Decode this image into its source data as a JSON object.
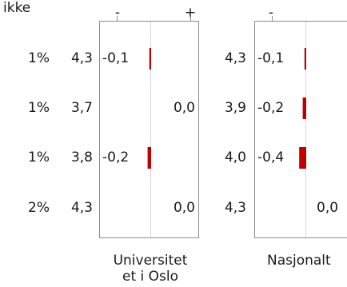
{
  "header": {
    "ikke_label": "ikke"
  },
  "chart_data": [
    {
      "type": "bar",
      "title": "Universitet et i Oslo",
      "title_lines": [
        "Universitet",
        "et i Oslo"
      ],
      "axis_minus": "-",
      "axis_plus": "+",
      "rows": [
        {
          "ikke": "1%",
          "mean": "4,3",
          "diff": -0.1,
          "diff_label": "-0,1"
        },
        {
          "ikke": "1%",
          "mean": "3,7",
          "diff": 0.0,
          "diff_label": "0,0"
        },
        {
          "ikke": "1%",
          "mean": "3,8",
          "diff": -0.2,
          "diff_label": "-0,2"
        },
        {
          "ikke": "2%",
          "mean": "4,3",
          "diff": 0.0,
          "diff_label": "0,0"
        }
      ],
      "bar_color": "#c00000"
    },
    {
      "type": "bar",
      "title": "Nasjonalt",
      "title_lines": [
        "Nasjonalt"
      ],
      "axis_minus": "-",
      "axis_plus": "",
      "rows": [
        {
          "mean": "4,3",
          "diff": -0.1,
          "diff_label": "-0,1"
        },
        {
          "mean": "3,9",
          "diff": -0.2,
          "diff_label": "-0,2"
        },
        {
          "mean": "4,0",
          "diff": -0.4,
          "diff_label": "-0,4"
        },
        {
          "mean": "4,3",
          "diff": 0.0,
          "diff_label": "0,0"
        }
      ],
      "bar_color": "#c00000"
    }
  ]
}
